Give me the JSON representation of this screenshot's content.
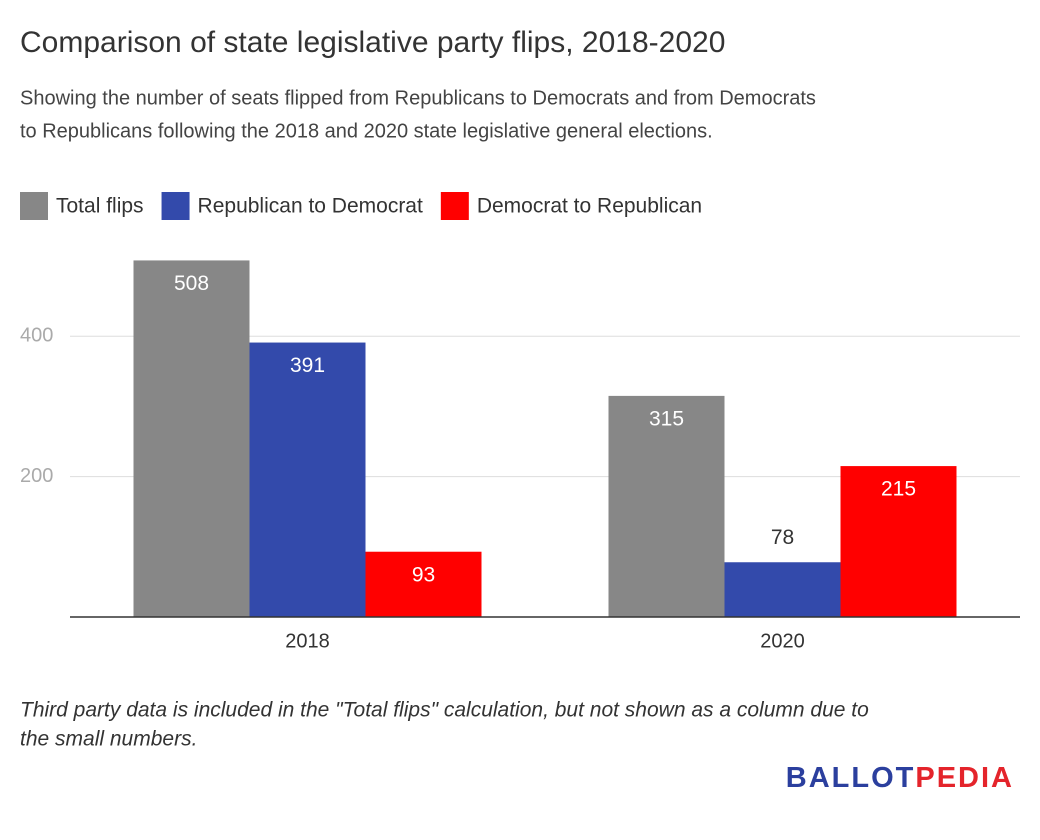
{
  "chart_data": {
    "type": "bar",
    "title": "Comparison of state legislative party flips, 2018-2020",
    "subtitle": [
      "Showing the number of seats flipped from Republicans to Democrats and from Democrats",
      "to Republicans following the 2018 and 2020 state legislative general elections."
    ],
    "categories": [
      "2018",
      "2020"
    ],
    "series": [
      {
        "name": "Total flips",
        "color": "#878787",
        "values": [
          508,
          315
        ]
      },
      {
        "name": "Republican to Democrat",
        "color": "#334aab",
        "values": [
          391,
          78
        ]
      },
      {
        "name": "Democrat to Republican",
        "color": "#ff0000",
        "values": [
          93,
          215
        ]
      }
    ],
    "ylim": [
      0,
      520
    ],
    "yticks": [
      200,
      400
    ],
    "grid": true,
    "legend": "top",
    "footnote": [
      "Third party data is included in the \"Total flips\" calculation, but not shown as a column due to",
      "the small numbers."
    ],
    "logo": [
      "BALLOT",
      "PEDIA"
    ]
  }
}
